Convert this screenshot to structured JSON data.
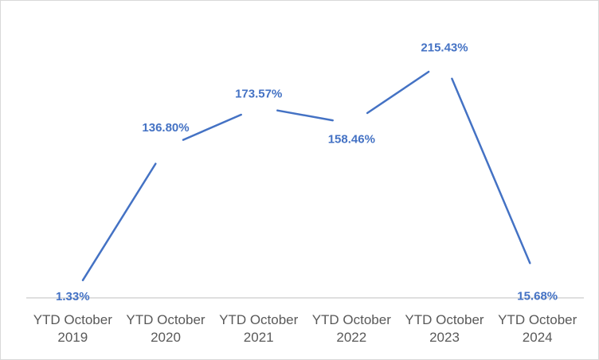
{
  "chart_data": {
    "type": "line",
    "title": "",
    "xlabel": "",
    "ylabel": "",
    "categories": [
      [
        "YTD October",
        "2019"
      ],
      [
        "YTD October",
        "2020"
      ],
      [
        "YTD October",
        "2021"
      ],
      [
        "YTD October",
        "2022"
      ],
      [
        "YTD October",
        "2023"
      ],
      [
        "YTD October",
        "2024"
      ]
    ],
    "series": [
      {
        "values": [
          1.33,
          136.8,
          173.57,
          158.46,
          215.43,
          15.68
        ],
        "data_labels": [
          "1.33%",
          "136.80%",
          "173.57%",
          "158.46%",
          "215.43%",
          "15.68%"
        ],
        "color": "#4472c4"
      }
    ],
    "ylim": [
      0,
      250
    ],
    "y_axis_visible": false,
    "grid": false,
    "legend": "none",
    "colors": {
      "line": "#4472c4",
      "axis": "#bfbfbf",
      "tick_text": "#595959",
      "border": "#d9d9d9"
    }
  }
}
